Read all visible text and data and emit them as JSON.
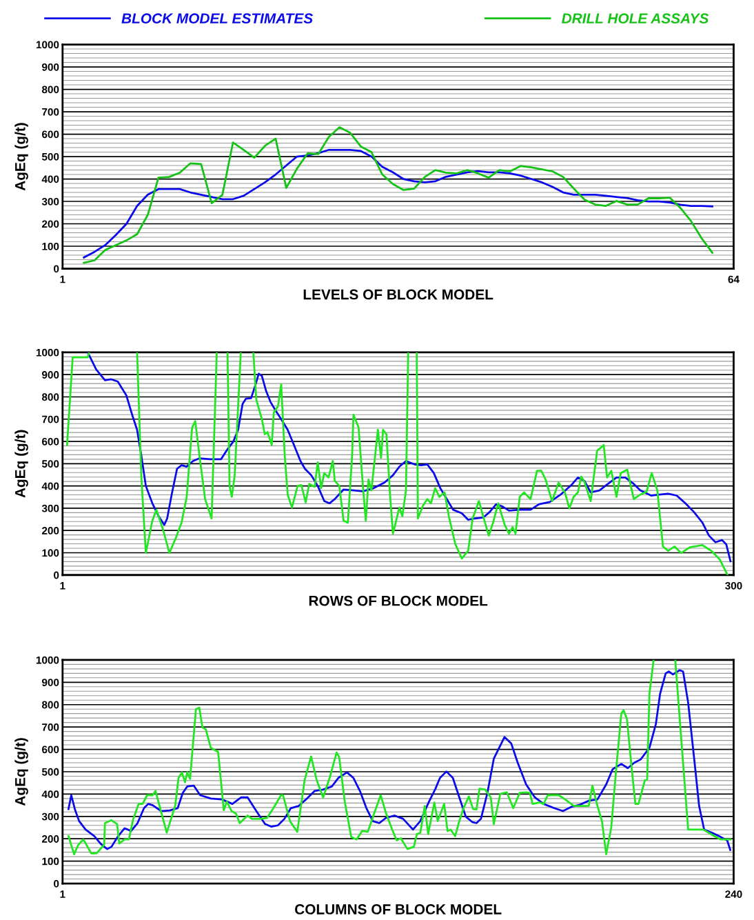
{
  "chart_data": [
    {
      "type": "line",
      "xlabel": "LEVELS OF BLOCK MODEL",
      "ylabel": "AgEq (g/t)",
      "xlim": [
        1,
        64
      ],
      "xticks": [
        1,
        64
      ],
      "ylim": [
        0,
        1000
      ],
      "yticks": [
        0,
        100,
        200,
        300,
        400,
        500,
        600,
        700,
        800,
        900,
        1000
      ],
      "grid": "y",
      "legend": "top",
      "marker": "none",
      "line_style": "solid",
      "series": [
        {
          "name": "BLOCK MODEL ESTIMATES",
          "color": "#0b0bea",
          "x": [
            3,
            4,
            5,
            6,
            7,
            8,
            9,
            10,
            11,
            12,
            13,
            14,
            15,
            16,
            17,
            18,
            19,
            20,
            21,
            22,
            23,
            24,
            25,
            26,
            27,
            28,
            29,
            30,
            31,
            32,
            33,
            34,
            35,
            36,
            37,
            38,
            39,
            40,
            41,
            42,
            43,
            44,
            45,
            46,
            47,
            48,
            49,
            50,
            51,
            52,
            53,
            54,
            55,
            56,
            57,
            58,
            59,
            60,
            61,
            62
          ],
          "values": [
            50,
            75,
            105,
            150,
            200,
            280,
            330,
            355,
            355,
            355,
            340,
            330,
            320,
            310,
            310,
            325,
            355,
            385,
            420,
            460,
            500,
            505,
            515,
            530,
            530,
            530,
            525,
            500,
            455,
            430,
            400,
            390,
            385,
            390,
            410,
            420,
            430,
            435,
            430,
            430,
            425,
            415,
            400,
            385,
            365,
            340,
            330,
            330,
            330,
            325,
            320,
            315,
            305,
            300,
            300,
            295,
            285,
            280,
            280,
            278
          ]
        },
        {
          "name": "DRILL HOLE ASSAYS",
          "color": "#16c216",
          "x": [
            3,
            4,
            5,
            6,
            7,
            8,
            9,
            10,
            11,
            12,
            13,
            14,
            15,
            16,
            17,
            18,
            19,
            20,
            21,
            22,
            23,
            24,
            25,
            26,
            27,
            28,
            29,
            30,
            31,
            32,
            33,
            34,
            35,
            36,
            37,
            38,
            39,
            40,
            41,
            42,
            43,
            44,
            45,
            46,
            47,
            48,
            49,
            50,
            51,
            52,
            53,
            54,
            55,
            56,
            57,
            58,
            59,
            60,
            61,
            62
          ],
          "values": [
            26,
            37,
            83,
            105,
            126,
            154,
            240,
            406,
            409,
            428,
            470,
            467,
            292,
            329,
            563,
            530,
            495,
            548,
            580,
            360,
            446,
            514,
            511,
            588,
            631,
            606,
            545,
            520,
            421,
            378,
            351,
            357,
            409,
            440,
            428,
            425,
            440,
            425,
            406,
            440,
            434,
            458,
            452,
            443,
            434,
            409,
            357,
            308,
            286,
            280,
            302,
            286,
            286,
            314,
            314,
            317,
            271,
            212,
            135,
            71
          ]
        }
      ]
    },
    {
      "type": "line",
      "xlabel": "ROWS OF BLOCK MODEL",
      "ylabel": "AgEq (g/t)",
      "xlim": [
        1,
        300
      ],
      "xticks": [
        1,
        300
      ],
      "ylim": [
        0,
        1000
      ],
      "yticks": [
        0,
        100,
        200,
        300,
        400,
        500,
        600,
        700,
        800,
        900,
        1000
      ],
      "grid": "y",
      "marker": "none",
      "line_style": "solid",
      "series": [
        {
          "color": "#0b0bea",
          "x": [
            12.2,
            16,
            19.9,
            22.7,
            25.6,
            29.4,
            32.3,
            34.2,
            36.1,
            38.1,
            41,
            43.8,
            46.3,
            47.6,
            49.6,
            52,
            54,
            56.3,
            59.1,
            62,
            66.8,
            71.6,
            74.5,
            77,
            79.2,
            81.2,
            82.7,
            85,
            87,
            88.4,
            89.8,
            91.7,
            93.6,
            95.9,
            98.4,
            101.3,
            104.1,
            107,
            109,
            111.8,
            114.7,
            117.6,
            119.9,
            122.3,
            126.2,
            131,
            134.8,
            139.6,
            144.4,
            148.2,
            151.1,
            154,
            157.8,
            160.7,
            163.5,
            166.4,
            169.3,
            172.2,
            175,
            178.9,
            181.7,
            184.6,
            188.4,
            191.3,
            194.2,
            197.1,
            199.9,
            204.7,
            209.5,
            213.3,
            218.1,
            222.9,
            227.7,
            230.6,
            233.5,
            236.3,
            240.2,
            244,
            247.8,
            251.7,
            255.5,
            258.4,
            263.2,
            267,
            270.8,
            274.6,
            278.5,
            282.3,
            286.1,
            289,
            291.9,
            294.8,
            296.7,
            298.6
          ],
          "values": [
            1000,
            923,
            875,
            879,
            869,
            807,
            710,
            652,
            535,
            400,
            322,
            264,
            225,
            254,
            361,
            477,
            493,
            487,
            512,
            524,
            520,
            520,
            565,
            598,
            652,
            768,
            792,
            794,
            856,
            904,
            894,
            826,
            778,
            739,
            700,
            652,
            584,
            512,
            477,
            448,
            400,
            332,
            322,
            341,
            384,
            380,
            376,
            390,
            415,
            448,
            487,
            512,
            497,
            493,
            497,
            458,
            390,
            341,
            293,
            277,
            248,
            254,
            258,
            283,
            318,
            307,
            289,
            293,
            293,
            318,
            328,
            361,
            404,
            438,
            423,
            371,
            380,
            409,
            438,
            438,
            409,
            380,
            357,
            361,
            365,
            357,
            322,
            283,
            235,
            177,
            147,
            157,
            138,
            62
          ]
        },
        {
          "color": "#22e622",
          "x": [
            3,
            5.5,
            12.2,
            12.8,
            23,
            34.2,
            36.1,
            38.1,
            41,
            42.8,
            45.7,
            48.6,
            51.5,
            54,
            56.3,
            58.7,
            60.1,
            62,
            64.5,
            67.4,
            69.7,
            72,
            74.5,
            75.4,
            76.4,
            77.7,
            80.4,
            83,
            86,
            87.3,
            89.8,
            91.1,
            92.3,
            94.2,
            95.1,
            97,
            98.4,
            100,
            101.3,
            103.2,
            105.7,
            107.4,
            109.3,
            110.9,
            113.3,
            114.7,
            116.2,
            117.6,
            119.5,
            121.4,
            122.3,
            124.3,
            126.2,
            128.1,
            130,
            130.6,
            132.9,
            134.8,
            136.1,
            137.3,
            138.6,
            141.5,
            142.9,
            143.8,
            145.3,
            146.9,
            148.2,
            151.1,
            152.4,
            154,
            155,
            157,
            158.8,
            159.3,
            161.6,
            163.5,
            165.1,
            167,
            168.9,
            171.2,
            173.1,
            176,
            178.9,
            181.7,
            183.7,
            186.5,
            188.4,
            190.9,
            192.8,
            195.1,
            198,
            199.9,
            201.5,
            202.8,
            204.7,
            206.6,
            209.5,
            212.4,
            214.3,
            216.2,
            219.1,
            222,
            224.8,
            226.8,
            228.7,
            230.6,
            232.1,
            233.5,
            236.3,
            239.2,
            241.1,
            242.1,
            243.6,
            245.5,
            247.8,
            249.7,
            252.6,
            255.5,
            258.4,
            261.2,
            263.5,
            266,
            268.5,
            270.8,
            273.7,
            276.6,
            280.4,
            286.1,
            290,
            293.8,
            297.3
          ],
          "values": [
            584,
            978,
            978,
            1000,
            null,
            1000,
            438,
            99,
            244,
            293,
            206,
            99,
            167,
            235,
            351,
            662,
            691,
            535,
            341,
            254,
            1000,
            null,
            1000,
            400,
            351,
            448,
            1000,
            null,
            1000,
            788,
            700,
            632,
            642,
            584,
            729,
            759,
            856,
            535,
            361,
            303,
            400,
            404,
            326,
            409,
            396,
            506,
            390,
            458,
            438,
            512,
            423,
            400,
            244,
            235,
            535,
            720,
            662,
            400,
            244,
            429,
            380,
            652,
            526,
            652,
            632,
            361,
            186,
            303,
            264,
            380,
            1000,
            null,
            1000,
            254,
            312,
            341,
            322,
            390,
            351,
            371,
            264,
            138,
            74,
            109,
            254,
            332,
            264,
            177,
            235,
            322,
            225,
            186,
            215,
            186,
            351,
            371,
            341,
            468,
            468,
            429,
            332,
            415,
            371,
            299,
            351,
            371,
            442,
            419,
            332,
            559,
            574,
            584,
            438,
            468,
            351,
            458,
            473,
            341,
            361,
            374,
            458,
            380,
            128,
            109,
            128,
            99,
            124,
            134,
            109,
            70,
            0
          ]
        }
      ]
    },
    {
      "type": "line",
      "xlabel": "COLUMNS OF BLOCK MODEL",
      "ylabel": "AgEq (g/t)",
      "xlim": [
        1,
        240
      ],
      "xticks": [
        1,
        240
      ],
      "ylim": [
        0,
        1000
      ],
      "yticks": [
        0,
        100,
        200,
        300,
        400,
        500,
        600,
        700,
        800,
        900,
        1000
      ],
      "grid": "y",
      "marker": "none",
      "line_style": "solid",
      "series": [
        {
          "color": "#0b0bea",
          "x": [
            3.1,
            4.1,
            5.4,
            6.9,
            9.2,
            12.3,
            14.6,
            16.9,
            18.4,
            20.8,
            23.1,
            25.4,
            27.7,
            30,
            31.5,
            33.1,
            36.1,
            39.2,
            42,
            43.8,
            45.4,
            47.7,
            50,
            53.8,
            57.7,
            61.5,
            64.6,
            66.9,
            70,
            73.1,
            75.4,
            77.7,
            80,
            82.3,
            85.1,
            87.7,
            90.8,
            93.8,
            96.9,
            99.2,
            102.3,
            104.6,
            106.9,
            109.2,
            111.5,
            113.8,
            116.1,
            119.2,
            122.3,
            125.8,
            128.4,
            131.5,
            133.8,
            135.4,
            137.7,
            140,
            142.3,
            144.6,
            147,
            148.4,
            150,
            152.3,
            154.6,
            158.4,
            160.8,
            163.1,
            166.1,
            169.2,
            172.3,
            176.1,
            179.2,
            182.3,
            185.4,
            188.4,
            191.5,
            194.6,
            196.9,
            200,
            202.3,
            204.6,
            206.9,
            210,
            212.3,
            213.8,
            215.8,
            216.9,
            218.4,
            220.8,
            222,
            223.8,
            226.1,
            227.7,
            229.5,
            232.3,
            235.4,
            237.7,
            238.8
          ],
          "values": [
            333,
            395,
            331,
            279,
            241,
            212,
            177,
            154,
            164,
            212,
            247,
            235,
            270,
            337,
            356,
            350,
            324,
            327,
            337,
            405,
            434,
            438,
            395,
            380,
            376,
            356,
            385,
            385,
            324,
            266,
            254,
            260,
            289,
            337,
            347,
            376,
            414,
            420,
            434,
            472,
            497,
            472,
            414,
            337,
            279,
            270,
            293,
            304,
            289,
            241,
            279,
            366,
            424,
            472,
            501,
            472,
            385,
            299,
            274,
            270,
            289,
            405,
            559,
            655,
            626,
            540,
            443,
            385,
            356,
            337,
            324,
            343,
            353,
            370,
            376,
            443,
            511,
            535,
            516,
            540,
            555,
            607,
            713,
            848,
            940,
            948,
            935,
            954,
            948,
            809,
            540,
            347,
            241,
            227,
            208,
            193,
            150
          ]
        },
        {
          "color": "#22e622",
          "x": [
            3.1,
            5.1,
            6.6,
            8.4,
            11.2,
            13.1,
            15.8,
            16.1,
            18.4,
            20.4,
            21.2,
            23.1,
            24.6,
            26.1,
            28.1,
            29.5,
            31.1,
            33.1,
            34.1,
            38.1,
            41.1,
            42.3,
            43.5,
            44.6,
            45.4,
            46.4,
            48.5,
            49.7,
            50.8,
            52,
            53.8,
            56.4,
            58.4,
            59.5,
            61.2,
            62.8,
            64.1,
            66.9,
            68.4,
            71.5,
            73.8,
            76.1,
            78.8,
            79.5,
            82,
            84.6,
            87.2,
            89.5,
            91.5,
            93.8,
            96.1,
            98.6,
            99.5,
            101.5,
            103.8,
            105.7,
            107.7,
            109.7,
            111.8,
            114.3,
            116.1,
            118.4,
            120,
            121.5,
            123.8,
            126.1,
            127.2,
            128.4,
            130,
            131.2,
            133.4,
            134.6,
            136.9,
            138.1,
            139.2,
            140.8,
            142.3,
            143.8,
            145.7,
            147.2,
            148.4,
            149.5,
            151.5,
            153.5,
            154.6,
            156.9,
            159.2,
            161.5,
            163.8,
            166.1,
            167.4,
            168.4,
            170.8,
            172.3,
            173.8,
            177.7,
            180,
            183.1,
            188.4,
            189.7,
            191.5,
            193.1,
            194.6,
            196.4,
            198.1,
            200,
            200.8,
            202,
            203.8,
            205,
            206.1,
            208.4,
            209.2,
            210,
            211.5,
            215,
            219.2,
            223.8,
            229.2,
            233.1,
            235.4,
            238.9
          ],
          "values": [
            212,
            131,
            173,
            197,
            135,
            135,
            173,
            270,
            283,
            266,
            179,
            197,
            197,
            285,
            356,
            356,
            395,
            395,
            414,
            227,
            347,
            472,
            497,
            453,
            497,
            468,
            780,
            786,
            698,
            690,
            607,
            588,
            328,
            366,
            324,
            312,
            270,
            304,
            289,
            289,
            293,
            337,
            395,
            395,
            279,
            231,
            462,
            568,
            462,
            385,
            472,
            586,
            566,
            366,
            208,
            197,
            235,
            231,
            308,
            395,
            318,
            241,
            193,
            202,
            154,
            164,
            221,
            227,
            347,
            221,
            362,
            279,
            356,
            235,
            241,
            212,
            279,
            337,
            389,
            333,
            331,
            424,
            420,
            385,
            266,
            401,
            408,
            337,
            405,
            408,
            405,
            356,
            362,
            356,
            395,
            395,
            376,
            347,
            347,
            437,
            347,
            279,
            131,
            250,
            501,
            761,
            775,
            736,
            501,
            356,
            356,
            462,
            466,
            848,
            1000,
            null,
            1000,
            241,
            241,
            212,
            197,
            197
          ]
        }
      ]
    }
  ]
}
